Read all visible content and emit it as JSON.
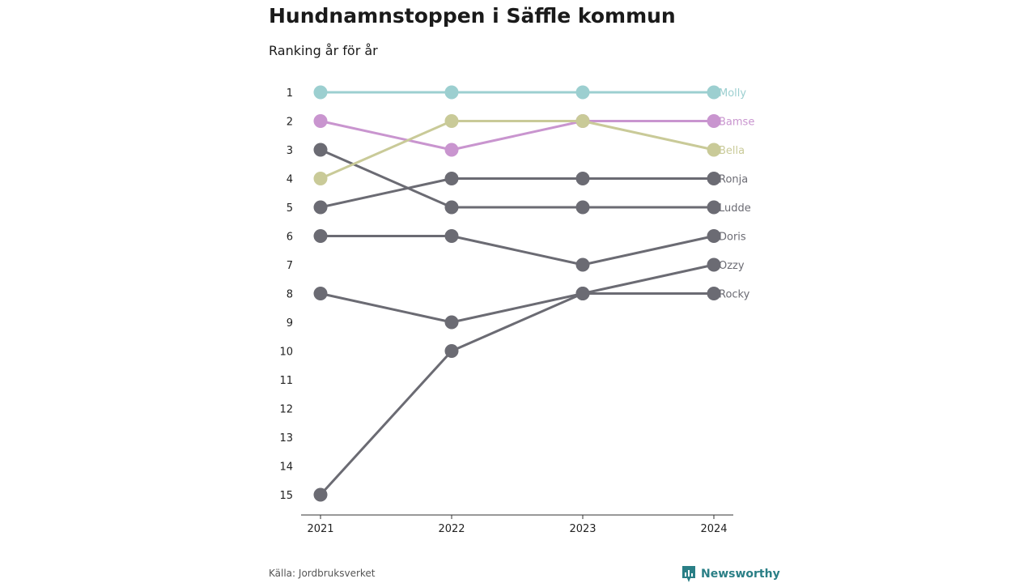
{
  "chart_data": {
    "type": "line",
    "title": "Hundnamnstoppen i Säffle kommun",
    "subtitle": "Ranking år för år",
    "x": [
      "2021",
      "2022",
      "2023",
      "2024"
    ],
    "y_ticks": [
      "1",
      "2",
      "3",
      "4",
      "5",
      "6",
      "7",
      "8",
      "9",
      "10",
      "11",
      "12",
      "13",
      "14",
      "15"
    ],
    "ylim": [
      1,
      15
    ],
    "y_reversed": true,
    "grid": false,
    "series": [
      {
        "name": "Molly",
        "values": [
          1,
          1,
          1,
          1
        ],
        "color": "#9ccfd0"
      },
      {
        "name": "Bamse",
        "values": [
          2,
          3,
          2,
          2
        ],
        "color": "#c995cf"
      },
      {
        "name": "Bella",
        "values": [
          4,
          2,
          2,
          3
        ],
        "color": "#c9ca98"
      },
      {
        "name": "Ronja",
        "values": [
          5,
          4,
          4,
          4
        ],
        "color": "#6b6b73"
      },
      {
        "name": "Ludde",
        "values": [
          3,
          5,
          5,
          5
        ],
        "color": "#6b6b73"
      },
      {
        "name": "Doris",
        "values": [
          6,
          6,
          7,
          6
        ],
        "color": "#6b6b73"
      },
      {
        "name": "Ozzy",
        "values": [
          15,
          10,
          8,
          7
        ],
        "color": "#6b6b73"
      },
      {
        "name": "Rocky",
        "values": [
          8,
          9,
          8,
          8
        ],
        "color": "#6b6b73"
      }
    ]
  },
  "footer": {
    "source_label": "Källa:",
    "source_value": "Jordbruksverket",
    "brand": "Newsworthy"
  },
  "colors": {
    "highlight_molly": "#9ccfd0",
    "highlight_bamse": "#c995cf",
    "highlight_bella": "#c9ca98",
    "muted": "#6b6b73",
    "brand": "#2a7f86"
  }
}
